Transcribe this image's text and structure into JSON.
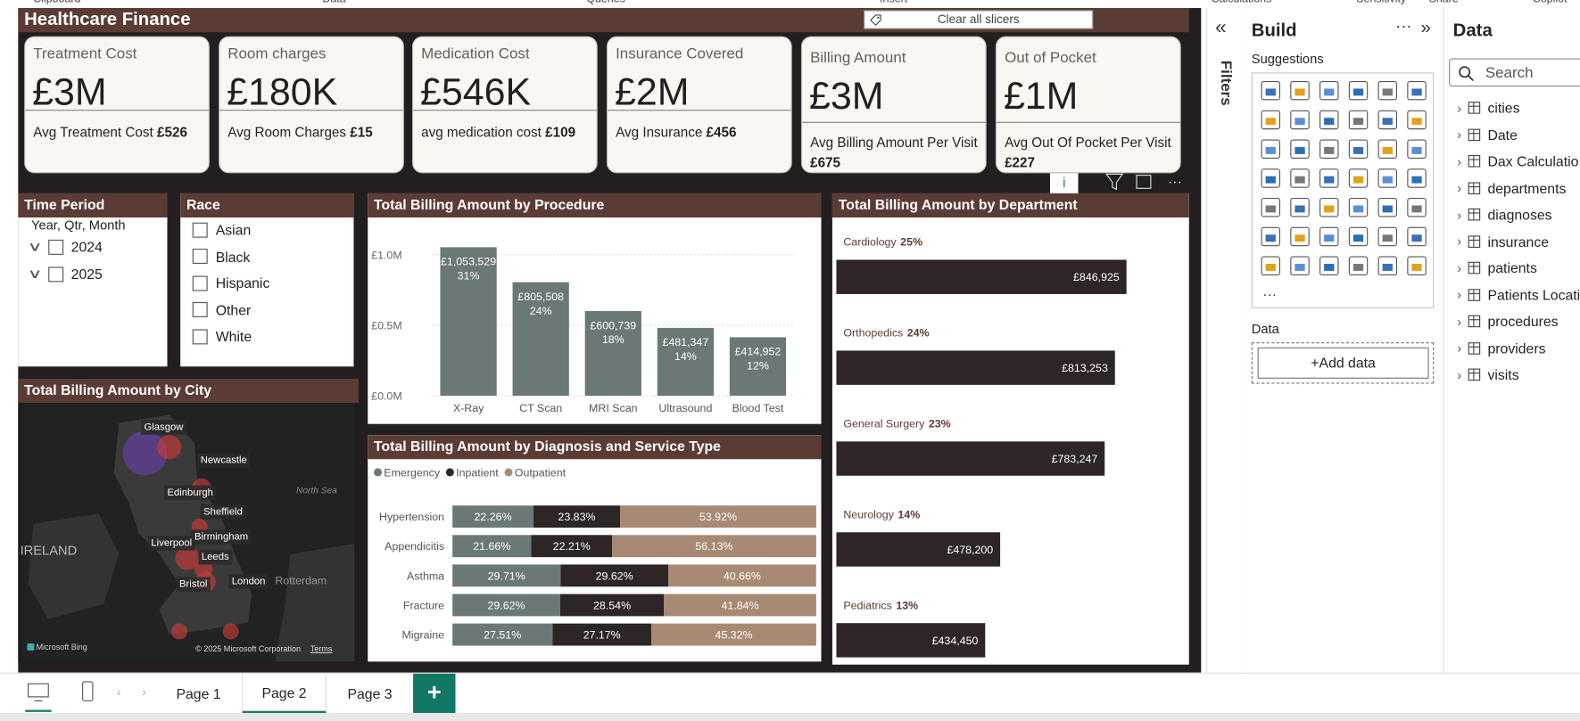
{
  "ribbon": [
    "Clipboard",
    "Data",
    "Queries",
    "Insert",
    "Calculations",
    "Sensitivity",
    "Share",
    "Copilot"
  ],
  "report": {
    "title": "Healthcare Finance",
    "clear_slicers": "Clear all slicers"
  },
  "kpis": [
    {
      "title": "Treatment Cost",
      "value": "£3M",
      "sub_label": "Avg Treatment Cost",
      "sub_value": "£526"
    },
    {
      "title": "Room charges",
      "value": "£180K",
      "sub_label": "Avg Room Charges",
      "sub_value": "£15"
    },
    {
      "title": "Medication Cost",
      "value": "£546K",
      "sub_label": "avg medication cost",
      "sub_value": "£109"
    },
    {
      "title": "Insurance Covered",
      "value": "£2M",
      "sub_label": "Avg Insurance",
      "sub_value": "£456"
    },
    {
      "title": "Billing Amount",
      "value": "£3M",
      "sub_label": "Avg Billing Amount Per Visit",
      "sub_value": "£675"
    },
    {
      "title": "Out of Pocket",
      "value": "£1M",
      "sub_label": "Avg Out Of Pocket Per Visit",
      "sub_value": "£227"
    }
  ],
  "slicers": {
    "time_period": {
      "title": "Time Period",
      "header": "Year, Qtr, Month",
      "items": [
        "2024",
        "2025"
      ]
    },
    "race": {
      "title": "Race",
      "items": [
        "Asian",
        "Black",
        "Hispanic",
        "Other",
        "White"
      ]
    }
  },
  "map": {
    "title": "Total Billing Amount by City",
    "cities": [
      "Glasgow",
      "Newcastle",
      "Edinburgh",
      "Sheffield",
      "Birmingham",
      "Liverpool",
      "Leeds",
      "London",
      "Bristol"
    ],
    "places": [
      "IRELAND",
      "North Sea",
      "Rotterdam"
    ],
    "credit": "Microsoft Bing",
    "copyright": "© 2025 Microsoft Corporation",
    "terms": "Terms"
  },
  "procedure_chart": {
    "type": "bar",
    "title": "Total Billing Amount by Procedure",
    "categories": [
      "X-Ray",
      "CT Scan",
      "MRI Scan",
      "Ultrasound",
      "Blood Test"
    ],
    "values": [
      1053529,
      805508,
      600739,
      481347,
      414952
    ],
    "value_labels": [
      "£1,053,529",
      "£805,508",
      "£600,739",
      "£481,347",
      "£414,952"
    ],
    "pct_labels": [
      "31%",
      "24%",
      "18%",
      "14%",
      "12%"
    ],
    "color": "#6b7878",
    "ylim": [
      0,
      1100000
    ],
    "yticks": [
      {
        "value": 0,
        "label": "£0.0M"
      },
      {
        "value": 500000,
        "label": "£0.5M"
      },
      {
        "value": 1000000,
        "label": "£1.0M"
      }
    ],
    "grid": true
  },
  "diagnosis_chart": {
    "type": "stacked_bar",
    "title": "Total Billing Amount by Diagnosis and Service Type",
    "categories": [
      "Hypertension",
      "Appendicitis",
      "Asthma",
      "Fracture",
      "Migraine"
    ],
    "series": [
      {
        "name": "Emergency",
        "color": "#6b7878",
        "values": [
          22.26,
          21.66,
          29.71,
          29.62,
          27.51
        ],
        "value_labels": [
          "22.26%",
          "21.66%",
          "29.71%",
          "29.62%",
          "27.51%"
        ]
      },
      {
        "name": "Inpatient",
        "color": "#2e2526",
        "values": [
          23.83,
          22.21,
          29.62,
          28.54,
          27.17
        ],
        "value_labels": [
          "23.83%",
          "22.21%",
          "29.62%",
          "28.54%",
          "27.17%"
        ]
      },
      {
        "name": "Outpatient",
        "color": "#a88a74",
        "values": [
          53.92,
          56.13,
          40.66,
          41.84,
          45.32
        ],
        "value_labels": [
          "53.92%",
          "56.13%",
          "40.66%",
          "41.84%",
          "45.32%"
        ]
      }
    ],
    "xlim": [
      0,
      100
    ]
  },
  "department_chart": {
    "type": "hbar",
    "title": "Total Billing Amount by Department",
    "categories": [
      "Cardiology",
      "Orthopedics",
      "General Surgery",
      "Neurology",
      "Pediatrics"
    ],
    "values": [
      846925,
      813253,
      783247,
      478200,
      434450
    ],
    "value_labels": [
      "£846,925",
      "£813,253",
      "£783,247",
      "£478,200",
      "£434,450"
    ],
    "pct_labels": [
      "25%",
      "24%",
      "23%",
      "14%",
      "13%"
    ],
    "color": "#2e2526",
    "xlim": [
      0,
      1000000
    ]
  },
  "filters": {
    "title": "Filters"
  },
  "build": {
    "title": "Build",
    "suggestions": "Suggestions",
    "data_label": "Data",
    "add_data": "+Add data"
  },
  "data_pane": {
    "title": "Data",
    "search": "Search",
    "tables": [
      "cities",
      "Date",
      "Dax Calculatio",
      "departments",
      "diagnoses",
      "insurance",
      "patients",
      "Patients Locati",
      "procedures",
      "providers",
      "visits"
    ]
  },
  "pages": [
    "Page 1",
    "Page 2",
    "Page 3"
  ]
}
